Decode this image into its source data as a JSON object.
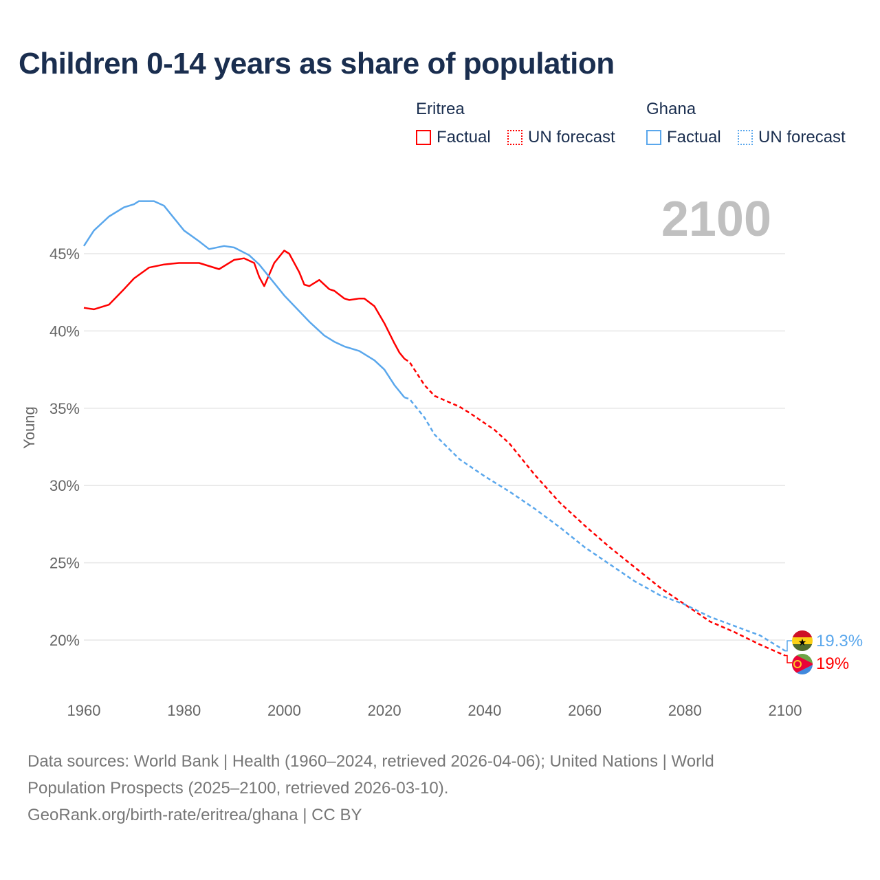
{
  "chart_data": {
    "type": "line",
    "title": "Children 0-14 years as share of population",
    "ylabel": "Young",
    "xlabel": "",
    "xlim": [
      1960,
      2100
    ],
    "ylim": [
      17.5,
      49
    ],
    "x_ticks": [
      "1960",
      "1980",
      "2000",
      "2020",
      "2040",
      "2060",
      "2080",
      "2100"
    ],
    "y_ticks": [
      "20%",
      "25%",
      "30%",
      "35%",
      "40%",
      "45%"
    ],
    "year_label": "2100",
    "legend": {
      "groups": [
        {
          "name": "Eritrea",
          "items": [
            "Factual",
            "UN forecast"
          ]
        },
        {
          "name": "Ghana",
          "items": [
            "Factual",
            "UN forecast"
          ]
        }
      ]
    },
    "series": [
      {
        "name": "Eritrea",
        "color": "#ff0000",
        "end_label": "19%",
        "factual": [
          [
            1960,
            41.5
          ],
          [
            1962,
            41.4
          ],
          [
            1965,
            41.7
          ],
          [
            1968,
            42.7
          ],
          [
            1970,
            43.4
          ],
          [
            1973,
            44.1
          ],
          [
            1976,
            44.3
          ],
          [
            1979,
            44.4
          ],
          [
            1983,
            44.4
          ],
          [
            1985,
            44.2
          ],
          [
            1987,
            44.0
          ],
          [
            1990,
            44.6
          ],
          [
            1992,
            44.7
          ],
          [
            1994,
            44.4
          ],
          [
            1995,
            43.5
          ],
          [
            1996,
            42.9
          ],
          [
            1998,
            44.4
          ],
          [
            2000,
            45.2
          ],
          [
            2001,
            45.0
          ],
          [
            2003,
            43.8
          ],
          [
            2004,
            43.0
          ],
          [
            2005,
            42.9
          ],
          [
            2007,
            43.3
          ],
          [
            2009,
            42.7
          ],
          [
            2010,
            42.6
          ],
          [
            2012,
            42.1
          ],
          [
            2013,
            42.0
          ],
          [
            2015,
            42.1
          ],
          [
            2016,
            42.1
          ],
          [
            2018,
            41.6
          ],
          [
            2020,
            40.5
          ],
          [
            2022,
            39.2
          ],
          [
            2023,
            38.6
          ],
          [
            2024,
            38.2
          ]
        ],
        "forecast": [
          [
            2024,
            38.2
          ],
          [
            2025,
            38.0
          ],
          [
            2028,
            36.5
          ],
          [
            2030,
            35.8
          ],
          [
            2035,
            35.1
          ],
          [
            2037,
            34.7
          ],
          [
            2042,
            33.6
          ],
          [
            2045,
            32.7
          ],
          [
            2050,
            30.7
          ],
          [
            2055,
            28.9
          ],
          [
            2060,
            27.4
          ],
          [
            2065,
            26.0
          ],
          [
            2070,
            24.7
          ],
          [
            2075,
            23.4
          ],
          [
            2080,
            22.3
          ],
          [
            2085,
            21.2
          ],
          [
            2090,
            20.5
          ],
          [
            2095,
            19.7
          ],
          [
            2100,
            19.0
          ]
        ]
      },
      {
        "name": "Ghana",
        "color": "#5aa7ec",
        "end_label": "19.3%",
        "factual": [
          [
            1960,
            45.5
          ],
          [
            1962,
            46.5
          ],
          [
            1965,
            47.4
          ],
          [
            1968,
            48.0
          ],
          [
            1970,
            48.2
          ],
          [
            1971,
            48.4
          ],
          [
            1974,
            48.4
          ],
          [
            1976,
            48.1
          ],
          [
            1978,
            47.3
          ],
          [
            1980,
            46.5
          ],
          [
            1983,
            45.8
          ],
          [
            1985,
            45.3
          ],
          [
            1988,
            45.5
          ],
          [
            1990,
            45.4
          ],
          [
            1993,
            44.9
          ],
          [
            1995,
            44.3
          ],
          [
            2000,
            42.3
          ],
          [
            2005,
            40.6
          ],
          [
            2008,
            39.7
          ],
          [
            2010,
            39.3
          ],
          [
            2012,
            39.0
          ],
          [
            2015,
            38.7
          ],
          [
            2018,
            38.1
          ],
          [
            2020,
            37.5
          ],
          [
            2022,
            36.5
          ],
          [
            2024,
            35.7
          ]
        ],
        "forecast": [
          [
            2024,
            35.7
          ],
          [
            2025,
            35.6
          ],
          [
            2028,
            34.4
          ],
          [
            2030,
            33.3
          ],
          [
            2035,
            31.7
          ],
          [
            2040,
            30.6
          ],
          [
            2045,
            29.6
          ],
          [
            2050,
            28.5
          ],
          [
            2055,
            27.3
          ],
          [
            2060,
            26.0
          ],
          [
            2065,
            24.9
          ],
          [
            2070,
            23.8
          ],
          [
            2075,
            22.9
          ],
          [
            2080,
            22.3
          ],
          [
            2085,
            21.5
          ],
          [
            2090,
            20.9
          ],
          [
            2095,
            20.3
          ],
          [
            2100,
            19.3
          ]
        ]
      }
    ]
  },
  "footer": {
    "line1": "Data sources: World Bank | Health (1960–2024, retrieved 2026-04-06); United Nations | World",
    "line2": "Population Prospects (2025–2100, retrieved 2026-03-10).",
    "line3": "GeoRank.org/birth-rate/eritrea/ghana | CC BY"
  }
}
